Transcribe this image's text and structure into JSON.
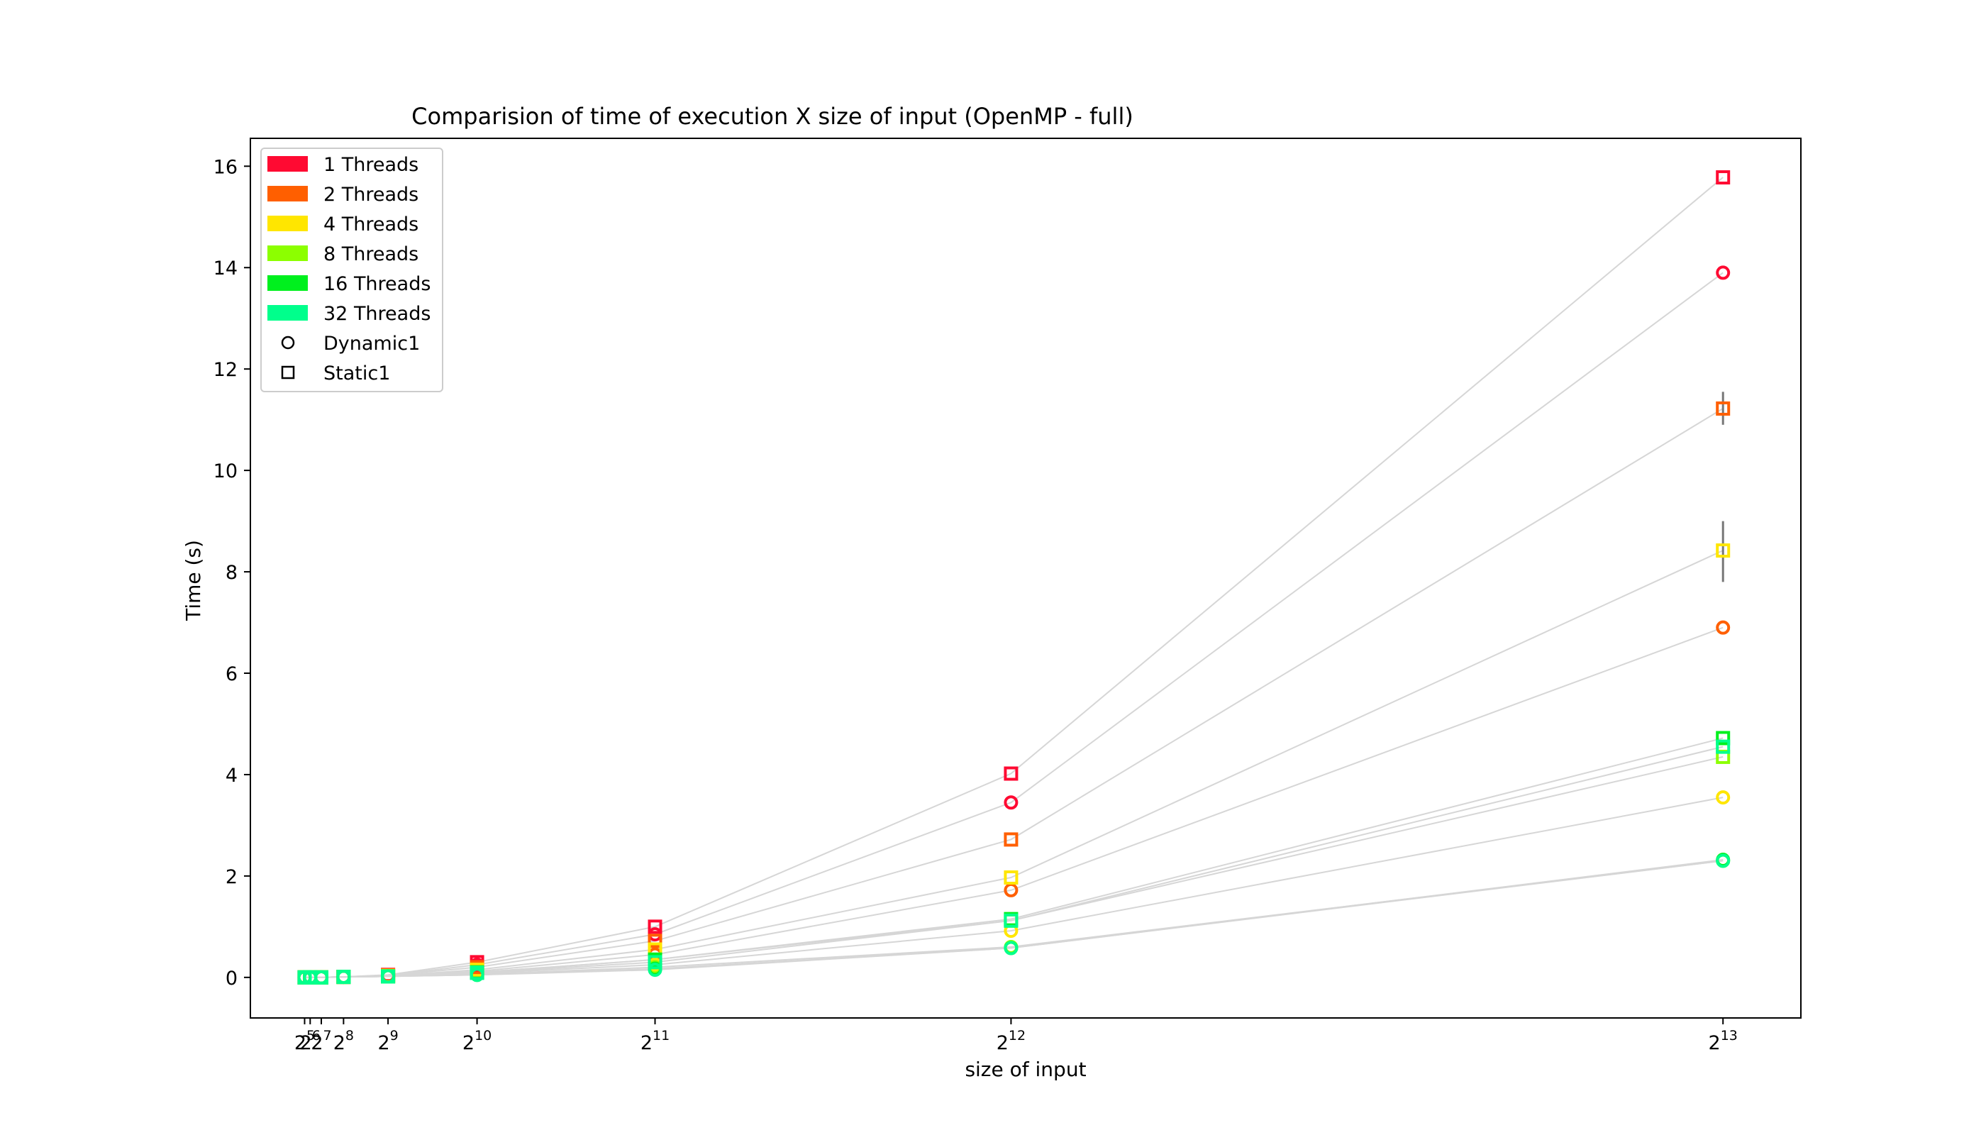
{
  "chart_data": {
    "type": "scatter",
    "title": "Comparision of time of execution X size of input (OpenMP - full)",
    "xlabel": "size of input",
    "ylabel": "Time (s)",
    "x_scale": "linear",
    "x_ticks": [
      {
        "value": 32,
        "base": "2",
        "exp": "5"
      },
      {
        "value": 64,
        "base": "2",
        "exp": "6"
      },
      {
        "value": 128,
        "base": "2",
        "exp": "7"
      },
      {
        "value": 256,
        "base": "2",
        "exp": "8"
      },
      {
        "value": 512,
        "base": "2",
        "exp": "9"
      },
      {
        "value": 1024,
        "base": "2",
        "exp": "10"
      },
      {
        "value": 2048,
        "base": "2",
        "exp": "11"
      },
      {
        "value": 4096,
        "base": "2",
        "exp": "12"
      },
      {
        "value": 8192,
        "base": "2",
        "exp": "13"
      }
    ],
    "xlim": [
      -280,
      8640
    ],
    "ylim": [
      -0.8,
      16.55
    ],
    "y_ticks": [
      "0",
      "2",
      "4",
      "6",
      "8",
      "10",
      "12",
      "14",
      "16"
    ],
    "grid": false,
    "legend_position": "top-left",
    "legend": [
      {
        "label": "1 Threads",
        "kind": "patch",
        "color": "#ff0a32"
      },
      {
        "label": "2 Threads",
        "kind": "patch",
        "color": "#ff5f00"
      },
      {
        "label": "4 Threads",
        "kind": "patch",
        "color": "#ffe600"
      },
      {
        "label": "8 Threads",
        "kind": "patch",
        "color": "#8cff00"
      },
      {
        "label": "16 Threads",
        "kind": "patch",
        "color": "#00f01e"
      },
      {
        "label": "32 Threads",
        "kind": "patch",
        "color": "#00ff8c"
      },
      {
        "label": "Dynamic1",
        "kind": "circle",
        "color": "#000000"
      },
      {
        "label": "Static1",
        "kind": "square",
        "color": "#000000"
      }
    ],
    "x": [
      32,
      64,
      128,
      256,
      512,
      1024,
      2048,
      4096,
      8192
    ],
    "series": [
      {
        "threads": 1,
        "schedule": "Static1",
        "color": "#ff0a32",
        "marker": "square",
        "values": [
          0,
          0,
          0,
          0.01,
          0.05,
          0.3,
          1.0,
          4.02,
          15.78
        ]
      },
      {
        "threads": 1,
        "schedule": "Dynamic1",
        "color": "#ff0a32",
        "marker": "circle",
        "values": [
          0,
          0,
          0,
          0.01,
          0.04,
          0.25,
          0.85,
          3.45,
          13.9
        ]
      },
      {
        "threads": 2,
        "schedule": "Static1",
        "color": "#ff5f00",
        "marker": "square",
        "values": [
          0,
          0,
          0,
          0.01,
          0.04,
          0.2,
          0.72,
          2.72,
          11.22
        ]
      },
      {
        "threads": 2,
        "schedule": "Dynamic1",
        "color": "#ff5f00",
        "marker": "circle",
        "values": [
          0,
          0,
          0,
          0.01,
          0.03,
          0.12,
          0.45,
          1.72,
          6.9
        ]
      },
      {
        "threads": 4,
        "schedule": "Static1",
        "color": "#ffe600",
        "marker": "square",
        "values": [
          0,
          0,
          0,
          0.01,
          0.03,
          0.15,
          0.55,
          1.97,
          8.42
        ]
      },
      {
        "threads": 4,
        "schedule": "Dynamic1",
        "color": "#ffe600",
        "marker": "circle",
        "values": [
          0,
          0,
          0,
          0.01,
          0.02,
          0.08,
          0.25,
          0.92,
          3.55
        ]
      },
      {
        "threads": 8,
        "schedule": "Static1",
        "color": "#8cff00",
        "marker": "square",
        "values": [
          0,
          0,
          0,
          0.01,
          0.02,
          0.1,
          0.35,
          1.12,
          4.35
        ]
      },
      {
        "threads": 8,
        "schedule": "Dynamic1",
        "color": "#8cff00",
        "marker": "circle",
        "values": [
          0,
          0,
          0,
          0.01,
          0.02,
          0.06,
          0.2,
          0.6,
          2.3
        ]
      },
      {
        "threads": 16,
        "schedule": "Static1",
        "color": "#00f01e",
        "marker": "square",
        "values": [
          0,
          0,
          0,
          0.01,
          0.02,
          0.1,
          0.35,
          1.15,
          4.72
        ]
      },
      {
        "threads": 16,
        "schedule": "Dynamic1",
        "color": "#00f01e",
        "marker": "circle",
        "values": [
          0,
          0,
          0,
          0.01,
          0.02,
          0.05,
          0.17,
          0.58,
          2.32
        ]
      },
      {
        "threads": 32,
        "schedule": "Static1",
        "color": "#00ff8c",
        "marker": "square",
        "values": [
          0,
          0,
          0,
          0.01,
          0.02,
          0.09,
          0.3,
          1.12,
          4.55
        ]
      },
      {
        "threads": 32,
        "schedule": "Dynamic1",
        "color": "#00ff8c",
        "marker": "circle",
        "values": [
          0,
          0,
          0,
          0.01,
          0.02,
          0.05,
          0.15,
          0.58,
          2.3
        ]
      }
    ],
    "error_bars": [
      {
        "x": 8192,
        "low": 10.9,
        "high": 11.55
      },
      {
        "x": 8192,
        "low": 7.8,
        "high": 9.0
      }
    ]
  }
}
